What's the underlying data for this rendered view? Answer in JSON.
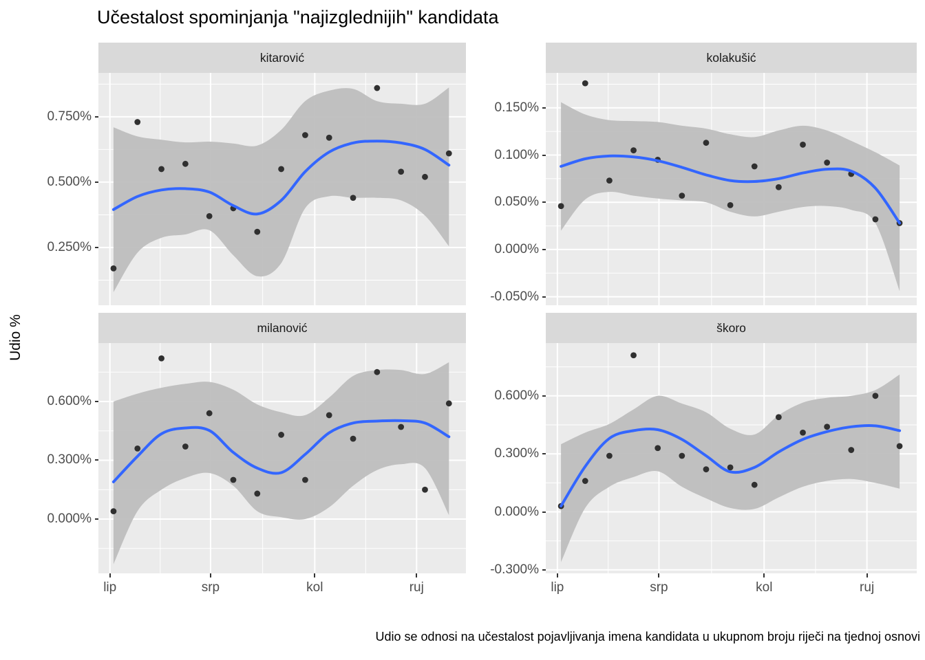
{
  "title": "Učestalost spominjanja \"najizglednijih\" kandidata",
  "y_axis_title": "Udio %",
  "caption": "Udio se odnosi na učestalost pojavljivanja imena kandidata u ukupnom broju riječi na tjednoj osnovi",
  "colors": {
    "panel_bg": "#EBEBEB",
    "strip_bg": "#D9D9D9",
    "grid": "#FFFFFF",
    "ribbon": "#BEBEBE",
    "smooth_line": "#3366FF",
    "point": "#303030",
    "tick_text": "#4D4D4D",
    "axis_tick": "#333333",
    "title_text": "#000000"
  },
  "chart_data": {
    "type": "scatter",
    "title": "Učestalost spominjanja \"najizglednijih\" kandidata",
    "ylabel": "Udio %",
    "x_unit": "tjedan (weekly observations, June–September)",
    "weeks": [
      1,
      2,
      3,
      4,
      5,
      6,
      7,
      8,
      9,
      10,
      11,
      12,
      13,
      14,
      15
    ],
    "month_ticks": {
      "labels": [
        "lip",
        "srp",
        "kol",
        "ruj"
      ],
      "week_positions": [
        -0.15,
        4.05,
        8.4,
        12.65
      ]
    },
    "xlim_weeks": [
      -0.63,
      14.71
    ],
    "grid": true,
    "legend": "none",
    "facets": [
      {
        "label": "kitarović",
        "ylim": [
          0.029,
          0.918
        ],
        "yticks": [
          0.75,
          0.5,
          0.25
        ],
        "ytick_labels": [
          "0.750%",
          "0.500%",
          "0.250%"
        ],
        "points": [
          0.17,
          0.73,
          0.55,
          0.57,
          0.37,
          0.4,
          0.31,
          0.55,
          0.68,
          0.67,
          0.44,
          0.86,
          0.54,
          0.52,
          0.61
        ],
        "smooth": [
          0.395,
          0.445,
          0.47,
          0.475,
          0.462,
          0.41,
          0.378,
          0.43,
          0.54,
          0.615,
          0.65,
          0.657,
          0.65,
          0.625,
          0.565
        ],
        "ribbon_upper": [
          0.71,
          0.675,
          0.662,
          0.652,
          0.655,
          0.648,
          0.64,
          0.7,
          0.81,
          0.85,
          0.857,
          0.81,
          0.8,
          0.8,
          0.862
        ],
        "ribbon_lower": [
          0.079,
          0.23,
          0.287,
          0.3,
          0.316,
          0.22,
          0.14,
          0.19,
          0.4,
          0.446,
          0.44,
          0.44,
          0.43,
          0.372,
          0.255
        ]
      },
      {
        "label": "kolakušić",
        "ylim": [
          -0.059,
          0.187
        ],
        "yticks": [
          0.15,
          0.1,
          0.05,
          0.0,
          -0.05
        ],
        "ytick_labels": [
          "0.150%",
          "0.100%",
          "0.050%",
          "0.000%",
          "-0.050%"
        ],
        "points": [
          0.046,
          0.176,
          0.073,
          0.105,
          0.095,
          0.057,
          0.113,
          0.047,
          0.088,
          0.066,
          0.111,
          0.092,
          0.08,
          0.032,
          0.028
        ],
        "smooth": [
          0.088,
          0.096,
          0.099,
          0.098,
          0.094,
          0.087,
          0.079,
          0.073,
          0.072,
          0.075,
          0.081,
          0.085,
          0.083,
          0.065,
          0.028
        ],
        "ribbon_upper": [
          0.156,
          0.143,
          0.137,
          0.136,
          0.135,
          0.131,
          0.128,
          0.122,
          0.119,
          0.126,
          0.131,
          0.126,
          0.115,
          0.103,
          0.089
        ],
        "ribbon_lower": [
          0.02,
          0.053,
          0.061,
          0.057,
          0.054,
          0.052,
          0.05,
          0.04,
          0.035,
          0.04,
          0.045,
          0.046,
          0.042,
          0.028,
          -0.044
        ]
      },
      {
        "label": "milanović",
        "ylim": [
          -0.277,
          0.898
        ],
        "yticks": [
          0.6,
          0.3,
          0.0
        ],
        "ytick_labels": [
          "0.600%",
          "0.300%",
          "0.000%"
        ],
        "points": [
          0.04,
          0.36,
          0.82,
          0.37,
          0.54,
          0.2,
          0.13,
          0.43,
          0.2,
          0.53,
          0.41,
          0.75,
          0.47,
          0.15,
          0.59
        ],
        "smooth": [
          0.19,
          0.32,
          0.435,
          0.465,
          0.452,
          0.34,
          0.26,
          0.237,
          0.33,
          0.44,
          0.49,
          0.5,
          0.502,
          0.49,
          0.42
        ],
        "ribbon_upper": [
          0.6,
          0.64,
          0.67,
          0.69,
          0.7,
          0.66,
          0.585,
          0.545,
          0.53,
          0.62,
          0.73,
          0.76,
          0.76,
          0.74,
          0.8
        ],
        "ribbon_lower": [
          -0.23,
          0.04,
          0.15,
          0.21,
          0.235,
          0.17,
          0.04,
          0.01,
          0.0,
          0.06,
          0.17,
          0.25,
          0.28,
          0.26,
          0.02
        ]
      },
      {
        "label": "škoro",
        "ylim": [
          -0.318,
          0.873
        ],
        "yticks": [
          0.6,
          0.3,
          0.0,
          -0.3
        ],
        "ytick_labels": [
          "0.600%",
          "0.300%",
          "0.000%",
          "-0.300%"
        ],
        "points": [
          0.03,
          0.16,
          0.29,
          0.81,
          0.33,
          0.29,
          0.22,
          0.23,
          0.14,
          0.49,
          0.41,
          0.44,
          0.32,
          0.6,
          0.34
        ],
        "smooth": [
          0.03,
          0.235,
          0.38,
          0.42,
          0.425,
          0.375,
          0.29,
          0.207,
          0.23,
          0.31,
          0.375,
          0.415,
          0.44,
          0.445,
          0.42
        ],
        "ribbon_upper": [
          0.35,
          0.41,
          0.455,
          0.53,
          0.6,
          0.56,
          0.515,
          0.43,
          0.4,
          0.5,
          0.565,
          0.59,
          0.6,
          0.63,
          0.71
        ],
        "ribbon_lower": [
          -0.26,
          0.02,
          0.13,
          0.18,
          0.21,
          0.13,
          0.07,
          0.02,
          0.015,
          0.075,
          0.13,
          0.16,
          0.17,
          0.15,
          0.12
        ]
      }
    ]
  }
}
